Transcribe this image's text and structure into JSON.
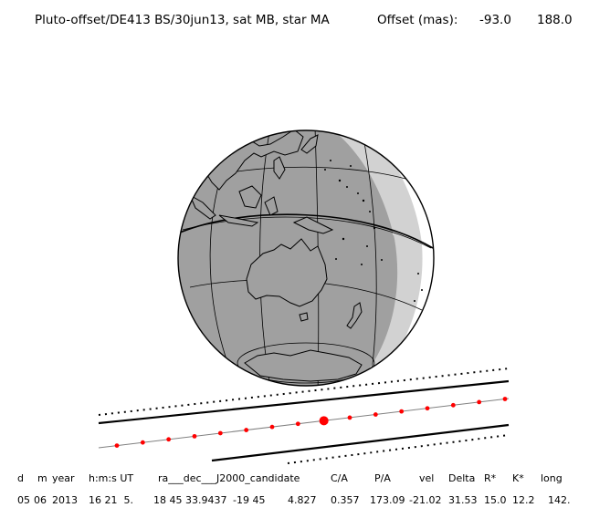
{
  "header": {
    "title": "Pluto-offset/DE413 BS/30jun13, sat MB, star MA",
    "offset_label": "Offset (mas):",
    "offset_x": "-93.0",
    "offset_y": "188.0"
  },
  "table": {
    "columns": [
      {
        "key": "d",
        "label": "d"
      },
      {
        "key": "m",
        "label": "m"
      },
      {
        "key": "year",
        "label": "year"
      },
      {
        "key": "hms",
        "label": "h:m:s UT"
      },
      {
        "key": "radec",
        "label": "ra___dec___J2000_candidate"
      },
      {
        "key": "ca",
        "label": "C/A"
      },
      {
        "key": "pa",
        "label": "P/A"
      },
      {
        "key": "vel",
        "label": "vel"
      },
      {
        "key": "delta",
        "label": "Delta"
      },
      {
        "key": "rstar",
        "label": "R*"
      },
      {
        "key": "kstar",
        "label": "K*"
      },
      {
        "key": "long",
        "label": "long"
      }
    ],
    "row": {
      "d": "05",
      "m": "06",
      "year": "2013",
      "hms": "16 21  5.",
      "ra": "18 45 33.9437",
      "dec": "-19 45",
      "mag": "4.827",
      "ca": "0.357",
      "pa": "173.09",
      "vel": "-21.02",
      "delta": "31.53",
      "rstar": "15.0",
      "kstar": "12.2",
      "long": "142."
    }
  },
  "map": {
    "projection": "orthographic globe",
    "center_region": "Australia",
    "colors": {
      "night": "#a0a0a0",
      "twilight": "#d2d2d2",
      "outline": "#000000",
      "track_dot": "#ff0000"
    }
  }
}
